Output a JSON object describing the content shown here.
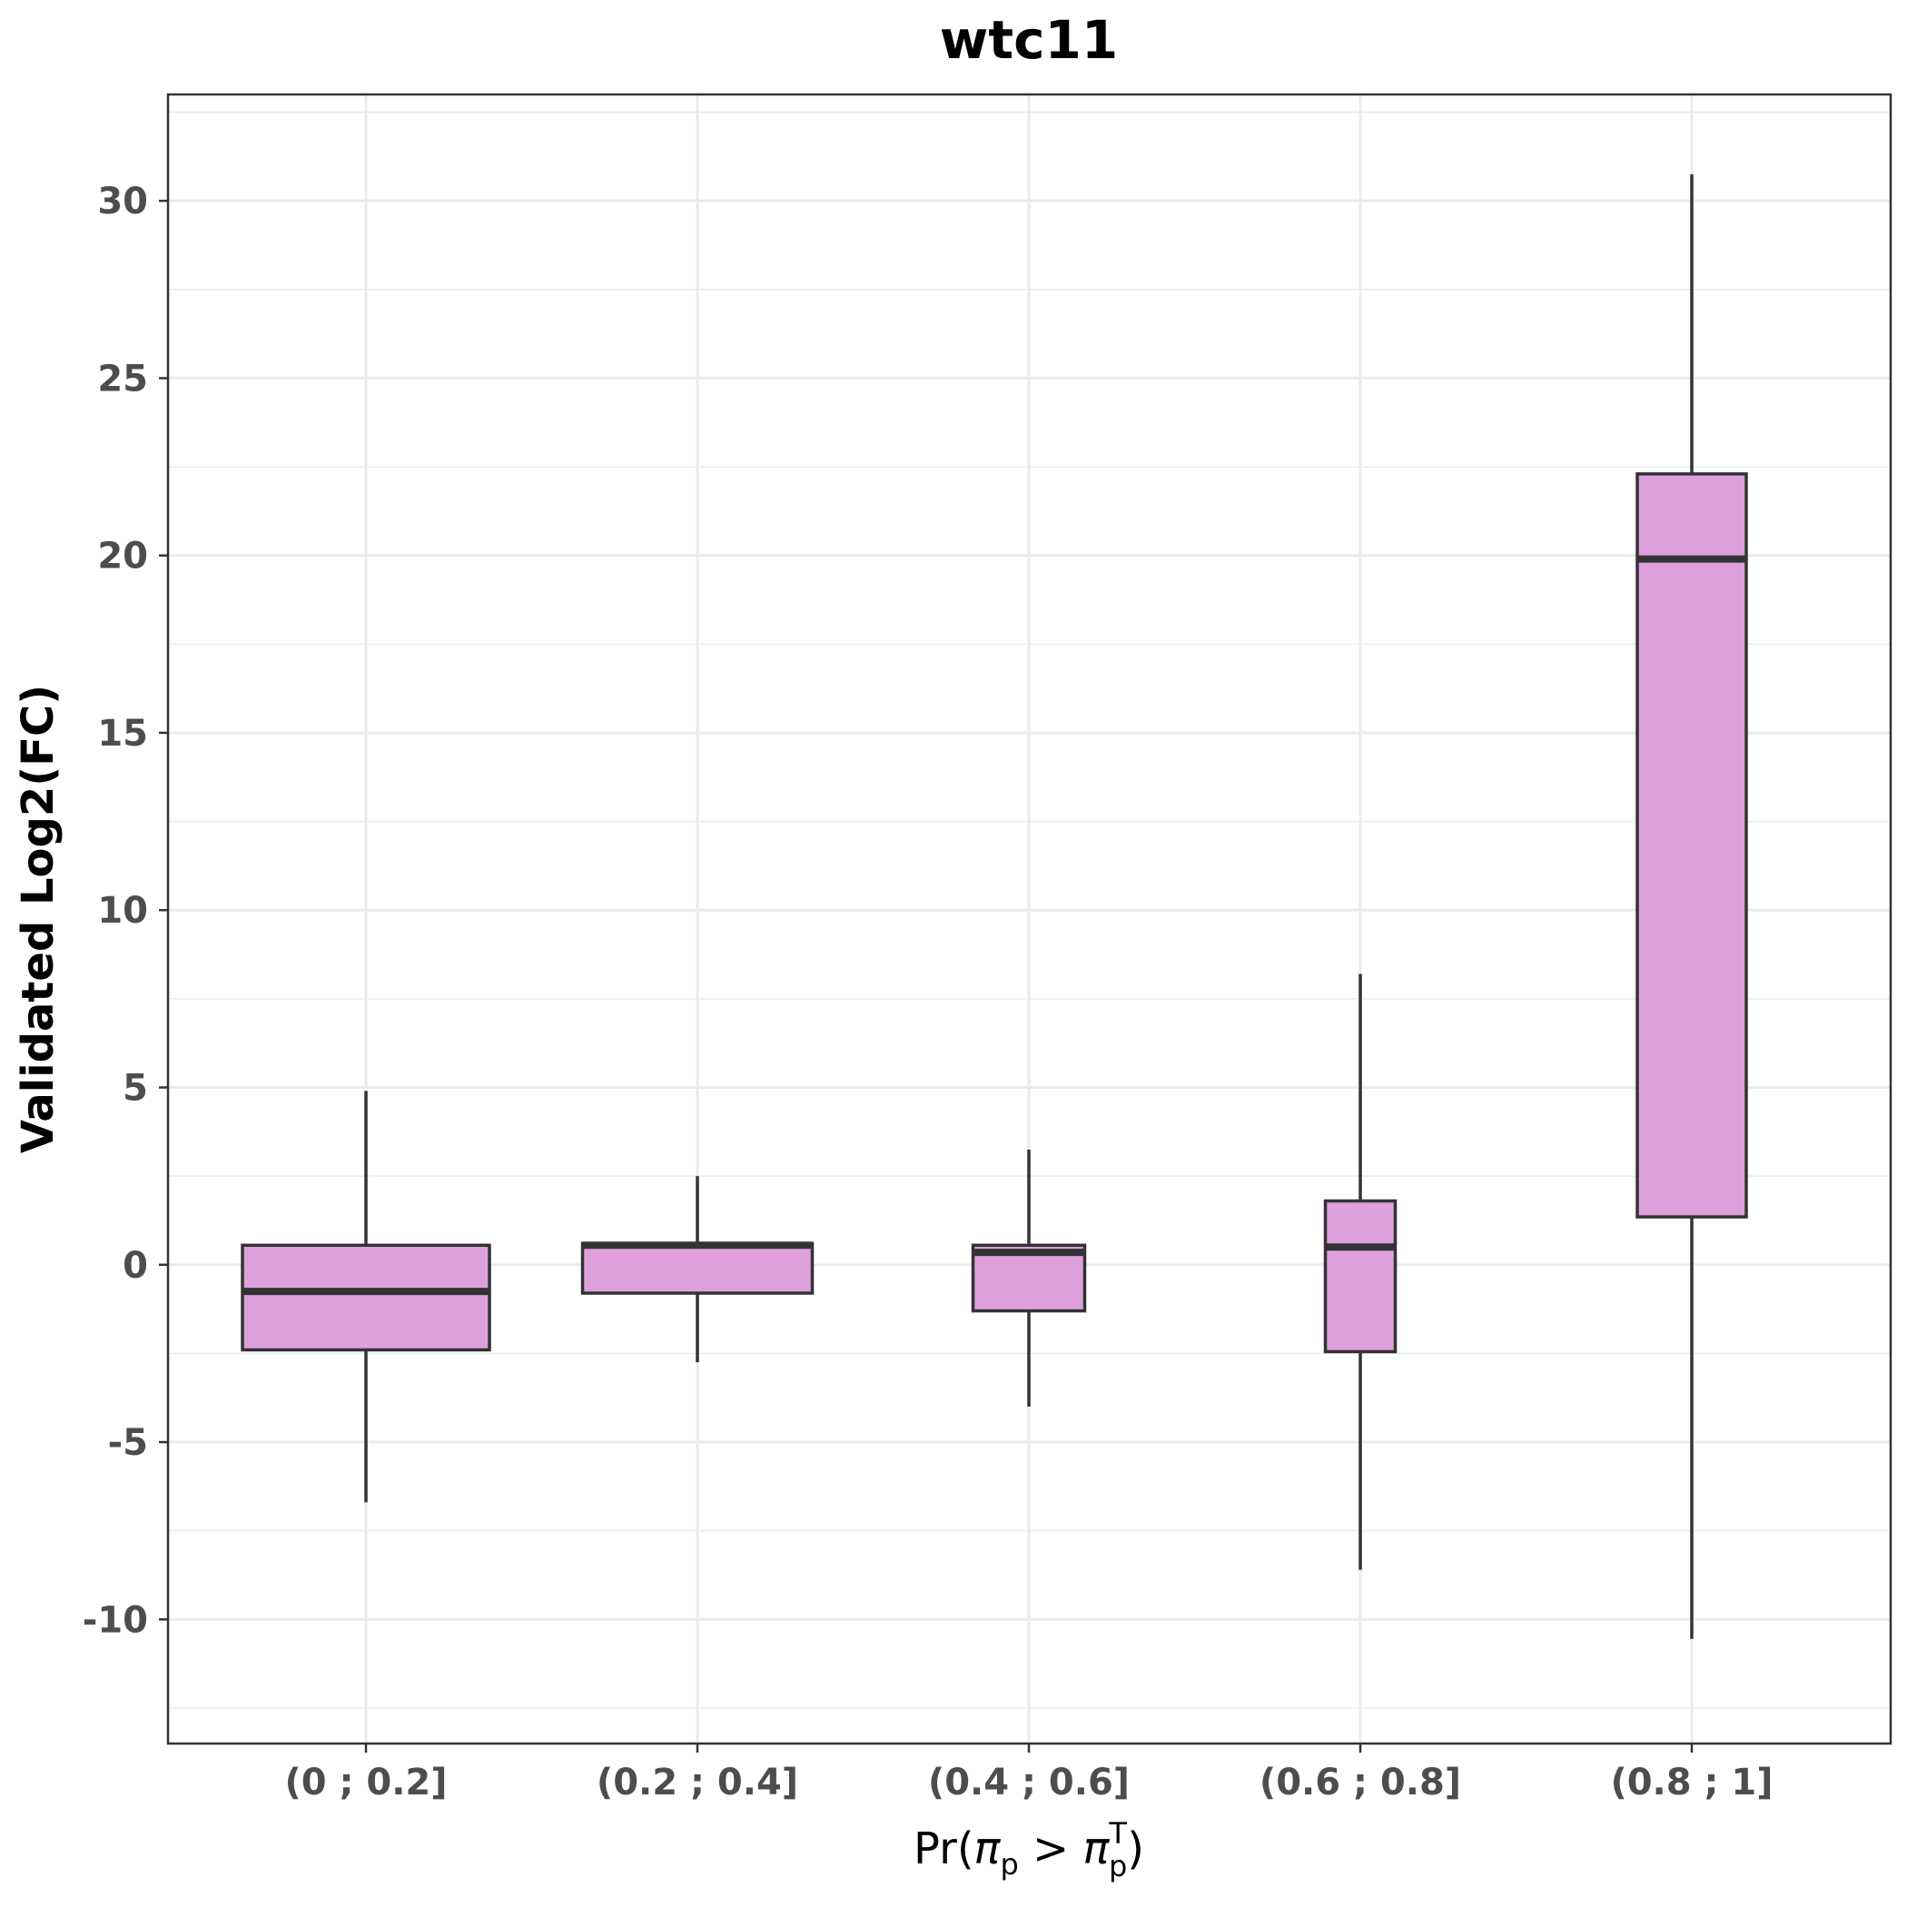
{
  "chart_data": {
    "type": "boxplot",
    "title": "wtc11",
    "xlabel": "Pr(πp > πpT)",
    "ylabel": "Validated Log2(FC)",
    "categories": [
      "(0 ; 0.2]",
      "(0.2 ; 0.4]",
      "(0.4 ; 0.6]",
      "(0.6 ; 0.8]",
      "(0.8 ; 1]"
    ],
    "boxes": [
      {
        "whisker_low": -6.7,
        "q1": -2.4,
        "median": -0.75,
        "q3": 0.55,
        "whisker_high": 4.9
      },
      {
        "whisker_low": -2.75,
        "q1": -0.8,
        "median": 0.55,
        "q3": 0.6,
        "whisker_high": 2.5
      },
      {
        "whisker_low": -4.0,
        "q1": -1.3,
        "median": 0.35,
        "q3": 0.55,
        "whisker_high": 3.25
      },
      {
        "whisker_low": -8.6,
        "q1": -2.45,
        "median": 0.5,
        "q3": 1.8,
        "whisker_high": 8.2
      },
      {
        "whisker_low": -10.55,
        "q1": 1.35,
        "median": 19.9,
        "q3": 22.3,
        "whisker_high": 30.75
      }
    ],
    "yticks": [
      -10,
      -5,
      0,
      5,
      10,
      15,
      20,
      25,
      30
    ],
    "ylim": [
      -13.5,
      33.0
    ],
    "grid": true,
    "colors": {
      "box_fill": "#dda0dd",
      "box_stroke": "#333333",
      "grid": "#ebebeb",
      "panel_border": "#333333"
    }
  }
}
